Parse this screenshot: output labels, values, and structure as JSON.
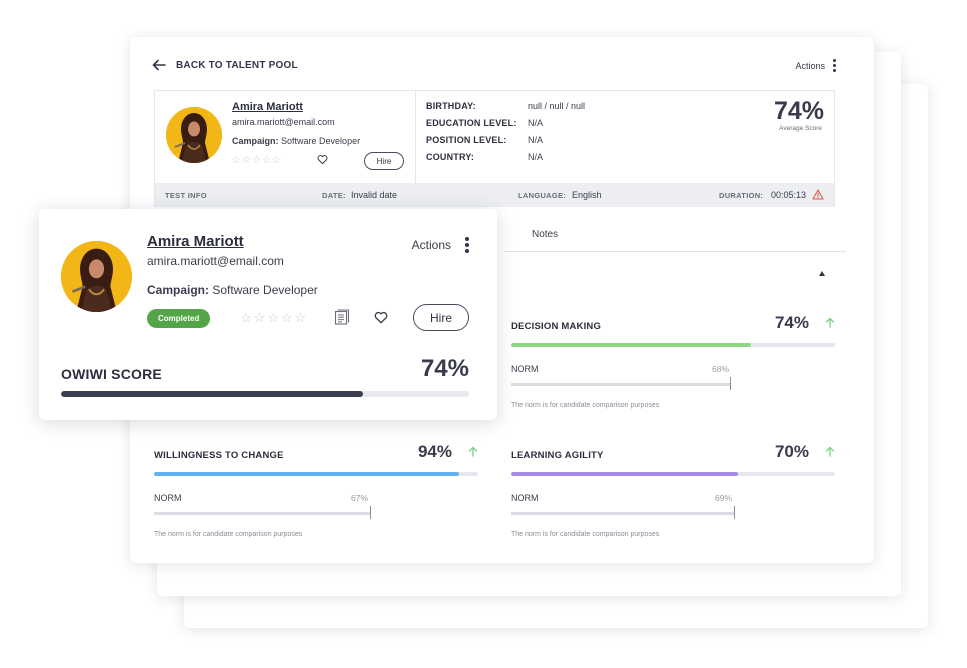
{
  "colors": {
    "accent_dark": "#3b3e4f",
    "green": "#8ed883",
    "blue": "#5fb1ef",
    "purple": "#a78ae8",
    "badge_green": "#53a547",
    "warning": "#e05a4e",
    "arrow_green": "#7fd28a",
    "avatar_bg": "#f2b616"
  },
  "header": {
    "back_label": "BACK TO TALENT POOL",
    "actions_label": "Actions"
  },
  "candidate": {
    "name": "Amira Mariott",
    "email": "amira.mariott@email.com",
    "campaign_label": "Campaign:",
    "campaign_value": "Software Developer",
    "hire_label": "Hire",
    "status_badge": "Completed",
    "rating": 0,
    "rating_max": 5
  },
  "details": [
    {
      "label": "BIRTHDAY:",
      "value": "null / null / null"
    },
    {
      "label": "EDUCATION LEVEL:",
      "value": "N/A"
    },
    {
      "label": "POSITION LEVEL:",
      "value": "N/A"
    },
    {
      "label": "COUNTRY:",
      "value": "N/A"
    }
  ],
  "score": {
    "value": "74%",
    "caption": "Average Score"
  },
  "test_info": {
    "title": "TEST INFO",
    "date_label": "DATE:",
    "date_value": "Invalid date",
    "language_label": "LANGUAGE:",
    "language_value": "English",
    "duration_label": "DURATION:",
    "duration_value": "00:05:13"
  },
  "tabs": {
    "notes_label": "Notes"
  },
  "metrics": [
    {
      "title": "DECISION MAKING",
      "pct": "74%",
      "value": 0.74,
      "norm_label": "NORM",
      "norm_pct": "68%",
      "norm_value": 0.68,
      "note": "The norm is for candidate comparison purposes"
    },
    {
      "title": "WILLINGNESS TO CHANGE",
      "pct": "94%",
      "value": 0.94,
      "norm_label": "NORM",
      "norm_pct": "67%",
      "norm_value": 0.67,
      "note": "The norm is for candidate comparison purposes"
    },
    {
      "title": "LEARNING AGILITY",
      "pct": "70%",
      "value": 0.7,
      "norm_label": "NORM",
      "norm_pct": "69%",
      "norm_value": 0.69,
      "note": "The norm is for candidate comparison purposes"
    }
  ],
  "card": {
    "actions_label": "Actions",
    "owiwi_label": "OWIWI SCORE",
    "owiwi_pct": "74%",
    "owiwi_value": 0.74
  }
}
